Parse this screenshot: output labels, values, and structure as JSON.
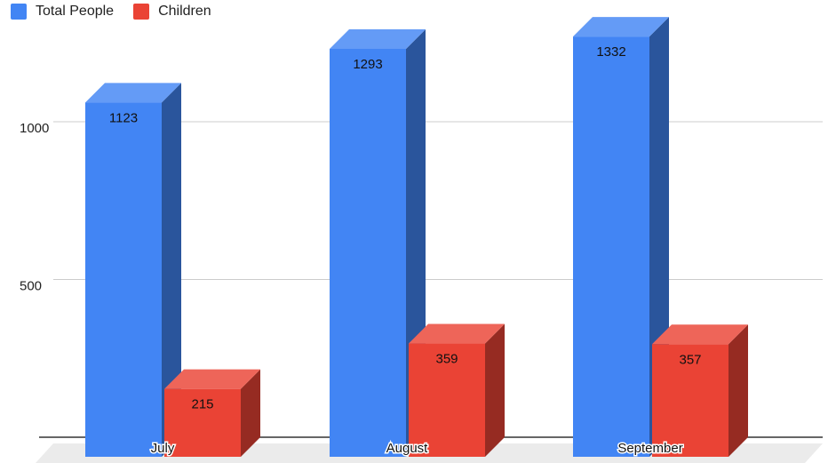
{
  "chart_data": {
    "type": "bar",
    "title": "",
    "xlabel": "",
    "ylabel": "",
    "categories": [
      "July",
      "August",
      "September"
    ],
    "series": [
      {
        "name": "Total People",
        "values": [
          1123,
          1293,
          1332
        ],
        "color": "#4285F4"
      },
      {
        "name": "Children",
        "values": [
          215,
          359,
          357
        ],
        "color": "#EA4335"
      }
    ],
    "yticks": [
      500,
      1000
    ],
    "ylim": [
      0,
      1400
    ],
    "legend_position": "top-left",
    "grid": true,
    "style": "3d"
  }
}
